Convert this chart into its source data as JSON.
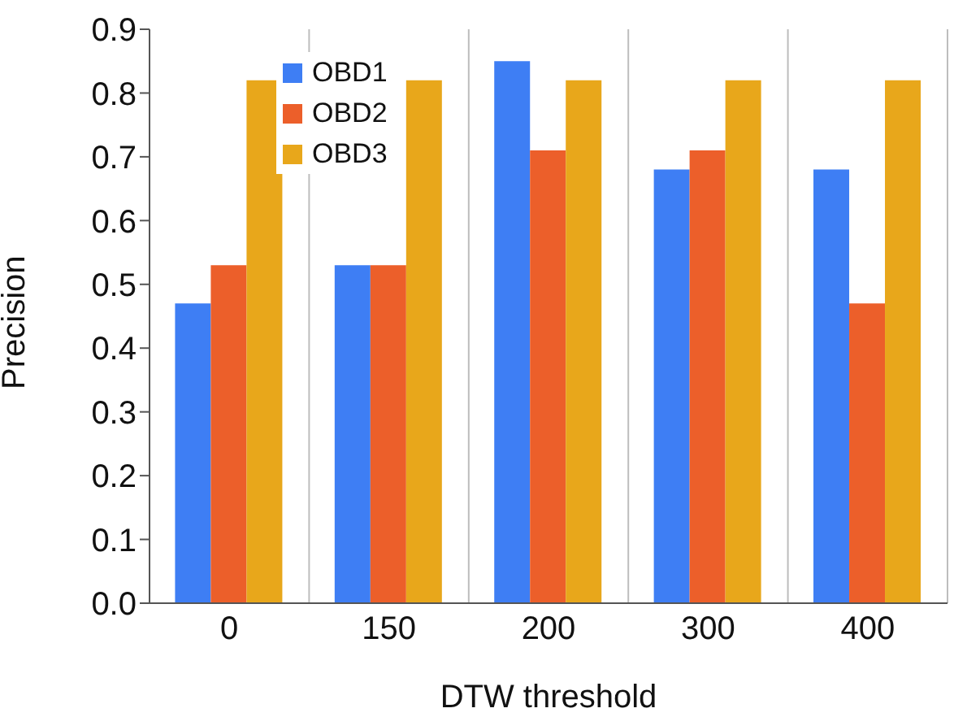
{
  "chart_data": {
    "type": "bar",
    "xlabel": "DTW threshold",
    "ylabel": "Precision",
    "categories": [
      "0",
      "150",
      "200",
      "300",
      "400"
    ],
    "series": [
      {
        "name": "OBD1",
        "color": "#3e7ef4",
        "values": [
          0.47,
          0.53,
          0.85,
          0.68,
          0.68
        ]
      },
      {
        "name": "OBD2",
        "color": "#ec5f2a",
        "values": [
          0.53,
          0.53,
          0.71,
          0.71,
          0.47
        ]
      },
      {
        "name": "OBD3",
        "color": "#e8a71b",
        "values": [
          0.82,
          0.82,
          0.82,
          0.82,
          0.82
        ]
      }
    ],
    "ylim": [
      0,
      0.9
    ],
    "yticks": [
      {
        "value": 0,
        "label": "0.0"
      },
      0.1,
      0.2,
      0.3,
      0.4,
      0.5,
      0.6,
      0.7,
      0.8,
      0.9
    ],
    "grid": "x",
    "legend": "top left"
  }
}
